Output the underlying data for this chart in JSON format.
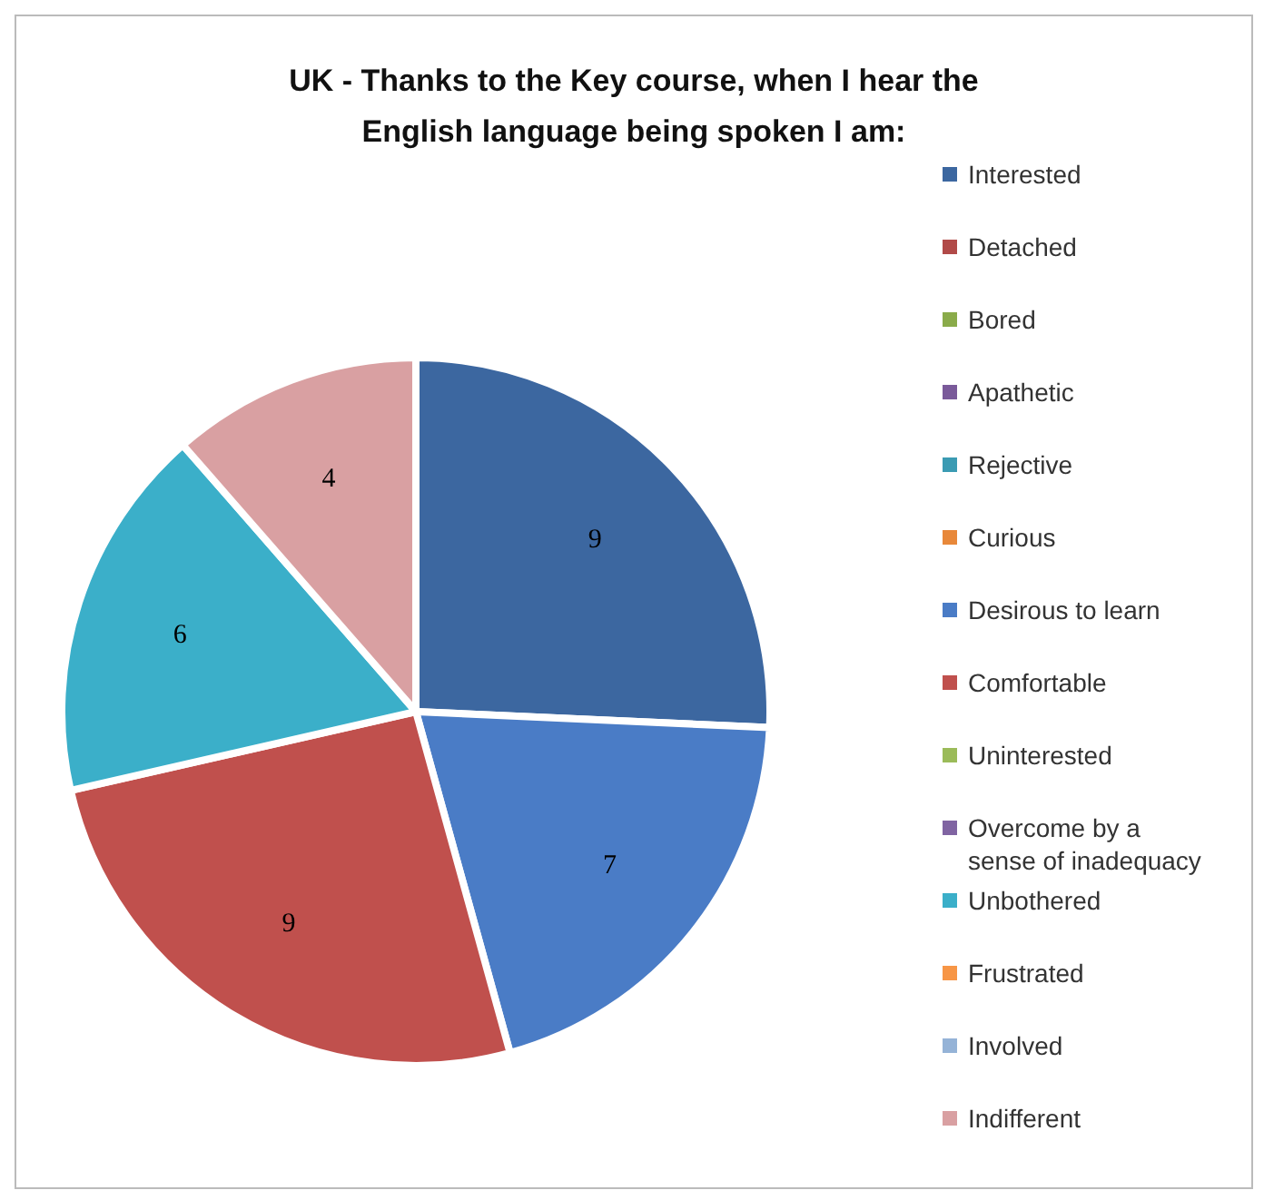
{
  "chart_data": {
    "type": "pie",
    "title": "UK - Thanks to the Key course, when I hear the English language being spoken I am:",
    "categories": [
      "Interested",
      "Detached",
      "Bored",
      "Apathetic",
      "Rejective",
      "Curious",
      "Desirous to learn",
      "Comfortable",
      "Uninterested",
      "Overcome by a sense of inadequacy",
      "Unbothered",
      "Frustrated",
      "Involved",
      "Indifferent"
    ],
    "values": [
      9,
      0,
      0,
      0,
      0,
      0,
      7,
      9,
      0,
      0,
      6,
      0,
      0,
      4
    ],
    "value_labels": [
      "9",
      null,
      null,
      null,
      null,
      null,
      "7",
      "9",
      null,
      null,
      "6",
      null,
      null,
      "4"
    ],
    "colors": [
      "#3c67a0",
      "#b14a48",
      "#8aab4a",
      "#7a5a9a",
      "#3b9bb3",
      "#e8883a",
      "#4a7cc6",
      "#c0504d",
      "#9bbb59",
      "#8064a2",
      "#3bafc9",
      "#f79646",
      "#95b3d7",
      "#d9a0a2"
    ],
    "legend": "right"
  }
}
